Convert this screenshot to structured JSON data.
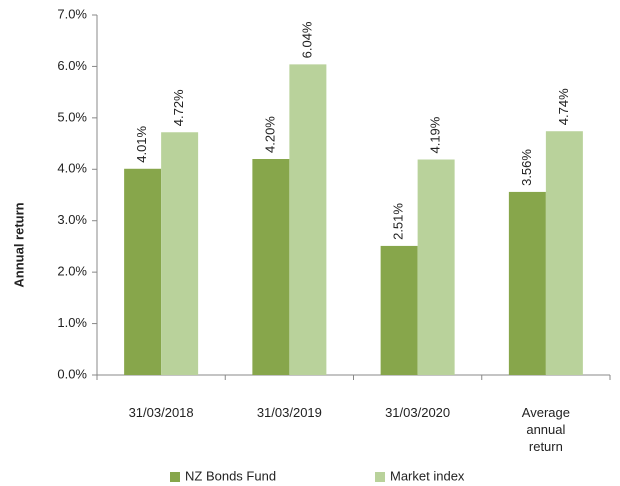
{
  "chart_data": {
    "type": "bar",
    "categories": [
      "31/03/2018",
      "31/03/2019",
      "31/03/2020",
      "Average annual return"
    ],
    "series": [
      {
        "name": "NZ Bonds Fund",
        "color": "#87a64b",
        "values": [
          4.01,
          4.2,
          2.51,
          3.56
        ],
        "value_labels": [
          "4.01%",
          "4.20%",
          "2.51%",
          "3.56%"
        ]
      },
      {
        "name": "Market index",
        "color": "#b9d29b",
        "values": [
          4.72,
          6.04,
          4.19,
          4.74
        ],
        "value_labels": [
          "4.72%",
          "6.04%",
          "4.19%",
          "4.74%"
        ]
      }
    ],
    "ylabel": "Annual return",
    "ylim": [
      0,
      7
    ],
    "yticks": [
      {
        "value": 0,
        "label": "0.0%"
      },
      {
        "value": 1,
        "label": "1.0%"
      },
      {
        "value": 2,
        "label": "2.0%"
      },
      {
        "value": 3,
        "label": "3.0%"
      },
      {
        "value": 4,
        "label": "4.0%"
      },
      {
        "value": 5,
        "label": "5.0%"
      },
      {
        "value": 6,
        "label": "6.0%"
      },
      {
        "value": 7,
        "label": "7.0%"
      }
    ],
    "legend": "bottom"
  }
}
